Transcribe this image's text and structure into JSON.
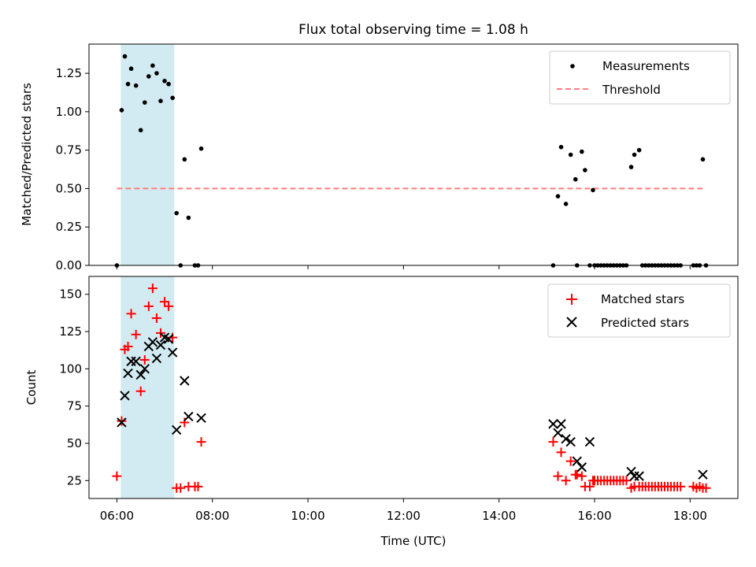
{
  "chart_data": [
    {
      "type": "scatter",
      "title": "Flux total observing time = 1.08 h",
      "xlabel": "",
      "ylabel": "Matched/Predicted stars",
      "xlim": [
        "05:25",
        "19:00"
      ],
      "ylim": [
        0,
        1.44
      ],
      "yticks": [
        "0.00",
        "0.25",
        "0.50",
        "0.75",
        "1.00",
        "1.25"
      ],
      "highlight_span": {
        "from": "06:05",
        "to": "07:12",
        "color": "#add8e6"
      },
      "legend": {
        "placement": "top-right",
        "entries": [
          "Measurements",
          "Threshold"
        ]
      },
      "series": [
        {
          "name": "Measurements",
          "marker": "dot",
          "color": "#000000",
          "points": [
            [
              "06:00",
              0.0
            ],
            [
              "06:06",
              1.01
            ],
            [
              "06:10",
              1.36
            ],
            [
              "06:14",
              1.18
            ],
            [
              "06:18",
              1.28
            ],
            [
              "06:24",
              1.17
            ],
            [
              "06:30",
              0.88
            ],
            [
              "06:35",
              1.06
            ],
            [
              "06:40",
              1.23
            ],
            [
              "06:45",
              1.3
            ],
            [
              "06:50",
              1.25
            ],
            [
              "06:55",
              1.07
            ],
            [
              "07:00",
              1.2
            ],
            [
              "07:05",
              1.18
            ],
            [
              "07:10",
              1.09
            ],
            [
              "07:15",
              0.34
            ],
            [
              "07:20",
              0.0
            ],
            [
              "07:25",
              0.69
            ],
            [
              "07:30",
              0.31
            ],
            [
              "07:38",
              0.0
            ],
            [
              "07:42",
              0.0
            ],
            [
              "07:46",
              0.76
            ],
            [
              "15:08",
              0.0
            ],
            [
              "15:14",
              0.45
            ],
            [
              "15:18",
              0.77
            ],
            [
              "15:24",
              0.4
            ],
            [
              "15:30",
              0.72
            ],
            [
              "15:36",
              0.56
            ],
            [
              "15:38",
              0.0
            ],
            [
              "15:44",
              0.74
            ],
            [
              "15:48",
              0.62
            ],
            [
              "15:54",
              0.0
            ],
            [
              "15:58",
              0.49
            ],
            [
              "16:00",
              0.0
            ],
            [
              "16:04",
              0.0
            ],
            [
              "16:08",
              0.0
            ],
            [
              "16:12",
              0.0
            ],
            [
              "16:16",
              0.0
            ],
            [
              "16:20",
              0.0
            ],
            [
              "16:24",
              0.0
            ],
            [
              "16:28",
              0.0
            ],
            [
              "16:32",
              0.0
            ],
            [
              "16:36",
              0.0
            ],
            [
              "16:40",
              0.0
            ],
            [
              "16:46",
              0.64
            ],
            [
              "16:50",
              0.72
            ],
            [
              "16:56",
              0.75
            ],
            [
              "17:00",
              0.0
            ],
            [
              "17:04",
              0.0
            ],
            [
              "17:08",
              0.0
            ],
            [
              "17:12",
              0.0
            ],
            [
              "17:16",
              0.0
            ],
            [
              "17:20",
              0.0
            ],
            [
              "17:24",
              0.0
            ],
            [
              "17:28",
              0.0
            ],
            [
              "17:32",
              0.0
            ],
            [
              "17:36",
              0.0
            ],
            [
              "17:40",
              0.0
            ],
            [
              "17:44",
              0.0
            ],
            [
              "17:48",
              0.0
            ],
            [
              "18:04",
              0.0
            ],
            [
              "18:08",
              0.0
            ],
            [
              "18:12",
              0.0
            ],
            [
              "18:16",
              0.69
            ],
            [
              "18:20",
              0.0
            ]
          ]
        },
        {
          "name": "Threshold",
          "marker": "dashed-line",
          "color": "#ff7f7f",
          "points": [
            [
              "06:00",
              0.5
            ],
            [
              "18:20",
              0.5
            ]
          ]
        }
      ]
    },
    {
      "type": "scatter",
      "xlabel": "Time (UTC)",
      "ylabel": "Count",
      "xlim": [
        "05:25",
        "19:00"
      ],
      "ylim": [
        13,
        162
      ],
      "xticks": [
        "06:00",
        "08:00",
        "10:00",
        "12:00",
        "14:00",
        "16:00",
        "18:00"
      ],
      "yticks": [
        "25",
        "50",
        "75",
        "100",
        "125",
        "150"
      ],
      "highlight_span": {
        "from": "06:05",
        "to": "07:12",
        "color": "#add8e6"
      },
      "legend": {
        "placement": "top-right",
        "entries": [
          "Matched stars",
          "Predicted stars"
        ]
      },
      "series": [
        {
          "name": "Matched stars",
          "marker": "plus",
          "color": "#ff0000",
          "points": [
            [
              "06:00",
              28
            ],
            [
              "06:06",
              65
            ],
            [
              "06:10",
              113
            ],
            [
              "06:14",
              115
            ],
            [
              "06:18",
              137
            ],
            [
              "06:24",
              123
            ],
            [
              "06:30",
              85
            ],
            [
              "06:35",
              106
            ],
            [
              "06:40",
              142
            ],
            [
              "06:45",
              154
            ],
            [
              "06:50",
              134
            ],
            [
              "06:55",
              124
            ],
            [
              "07:00",
              145
            ],
            [
              "07:05",
              142
            ],
            [
              "07:10",
              121
            ],
            [
              "07:15",
              20
            ],
            [
              "07:20",
              20
            ],
            [
              "07:25",
              64
            ],
            [
              "07:30",
              21
            ],
            [
              "07:38",
              21
            ],
            [
              "07:42",
              21
            ],
            [
              "07:46",
              51
            ],
            [
              "15:08",
              51
            ],
            [
              "15:14",
              28
            ],
            [
              "15:18",
              44
            ],
            [
              "15:24",
              25
            ],
            [
              "15:30",
              38
            ],
            [
              "15:36",
              29
            ],
            [
              "15:38",
              29
            ],
            [
              "15:44",
              28
            ],
            [
              "15:48",
              21
            ],
            [
              "15:54",
              21
            ],
            [
              "15:58",
              25
            ],
            [
              "16:00",
              25
            ],
            [
              "16:04",
              25
            ],
            [
              "16:08",
              25
            ],
            [
              "16:12",
              25
            ],
            [
              "16:16",
              25
            ],
            [
              "16:20",
              25
            ],
            [
              "16:24",
              25
            ],
            [
              "16:28",
              25
            ],
            [
              "16:32",
              25
            ],
            [
              "16:36",
              25
            ],
            [
              "16:40",
              25
            ],
            [
              "16:46",
              20
            ],
            [
              "16:50",
              21
            ],
            [
              "16:56",
              21
            ],
            [
              "17:00",
              21
            ],
            [
              "17:04",
              21
            ],
            [
              "17:08",
              21
            ],
            [
              "17:12",
              21
            ],
            [
              "17:16",
              21
            ],
            [
              "17:20",
              21
            ],
            [
              "17:24",
              21
            ],
            [
              "17:28",
              21
            ],
            [
              "17:32",
              21
            ],
            [
              "17:36",
              21
            ],
            [
              "17:40",
              21
            ],
            [
              "17:44",
              21
            ],
            [
              "17:48",
              21
            ],
            [
              "18:04",
              21
            ],
            [
              "18:08",
              20
            ],
            [
              "18:12",
              21
            ],
            [
              "18:16",
              20
            ],
            [
              "18:20",
              20
            ]
          ]
        },
        {
          "name": "Predicted stars",
          "marker": "x",
          "color": "#000000",
          "points": [
            [
              "06:06",
              64
            ],
            [
              "06:10",
              82
            ],
            [
              "06:14",
              97
            ],
            [
              "06:18",
              105
            ],
            [
              "06:24",
              105
            ],
            [
              "06:30",
              96
            ],
            [
              "06:35",
              100
            ],
            [
              "06:40",
              115
            ],
            [
              "06:45",
              118
            ],
            [
              "06:50",
              107
            ],
            [
              "06:55",
              116
            ],
            [
              "07:00",
              121
            ],
            [
              "07:05",
              120
            ],
            [
              "07:10",
              111
            ],
            [
              "07:15",
              59
            ],
            [
              "07:25",
              92
            ],
            [
              "07:30",
              68
            ],
            [
              "07:46",
              67
            ],
            [
              "15:08",
              63
            ],
            [
              "15:14",
              57
            ],
            [
              "15:18",
              63
            ],
            [
              "15:24",
              53
            ],
            [
              "15:30",
              51
            ],
            [
              "15:38",
              38
            ],
            [
              "15:44",
              34
            ],
            [
              "15:54",
              51
            ],
            [
              "16:46",
              31
            ],
            [
              "16:50",
              28
            ],
            [
              "16:56",
              28
            ],
            [
              "18:16",
              29
            ]
          ]
        }
      ]
    }
  ]
}
